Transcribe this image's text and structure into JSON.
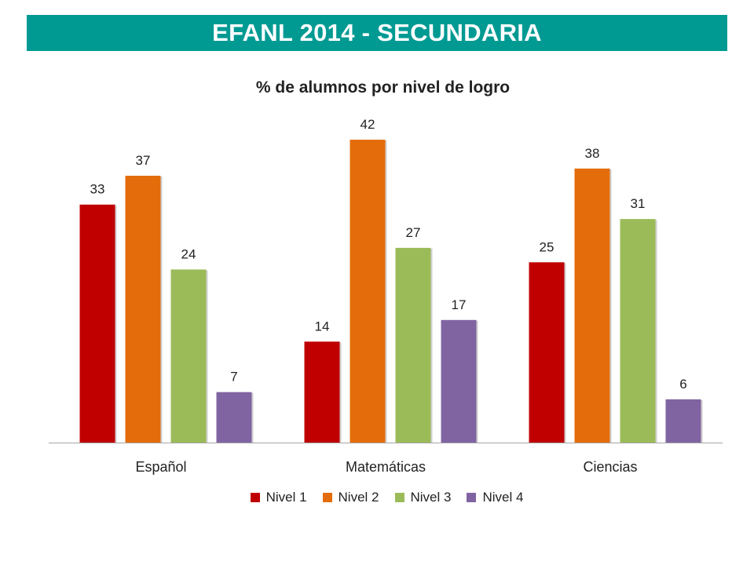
{
  "header": {
    "title": "EFANL 2014 - SECUNDARIA",
    "color": "#009a93"
  },
  "chart_data": {
    "type": "bar",
    "title": "% de alumnos por nivel de logro",
    "xlabel": "",
    "ylabel": "",
    "ylim": [
      0,
      45
    ],
    "grid": false,
    "legend_position": "bottom",
    "categories": [
      "Español",
      "Matemáticas",
      "Ciencias"
    ],
    "series": [
      {
        "name": "Nivel 1",
        "color": "#c00000",
        "values": [
          33,
          14,
          25
        ]
      },
      {
        "name": "Nivel 2",
        "color": "#e46c0a",
        "values": [
          37,
          42,
          38
        ]
      },
      {
        "name": "Nivel 3",
        "color": "#9bbb59",
        "values": [
          24,
          27,
          31
        ]
      },
      {
        "name": "Nivel 4",
        "color": "#8064a2",
        "values": [
          7,
          17,
          6
        ]
      }
    ]
  }
}
